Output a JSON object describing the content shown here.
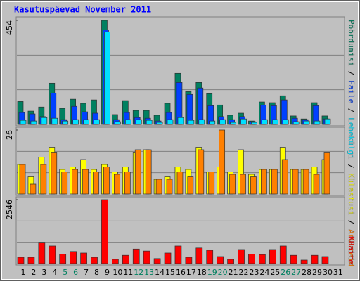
{
  "chart_data": {
    "type": "bar",
    "title": "Kasutuspäevad November 2011",
    "categories": [
      "1",
      "2",
      "3",
      "4",
      "5",
      "6",
      "7",
      "8",
      "9",
      "10",
      "11",
      "12",
      "13",
      "14",
      "15",
      "16",
      "17",
      "18",
      "19",
      "20",
      "21",
      "22",
      "23",
      "24",
      "25",
      "26",
      "27",
      "28",
      "29",
      "30",
      "31"
    ],
    "weekend_color": "#008060",
    "weekend_categories": [
      4,
      5,
      11,
      12,
      18,
      19,
      25,
      26
    ],
    "legend_separator": " / ",
    "panels": [
      {
        "ylim": [
          0,
          454
        ],
        "yticks": [
          454
        ],
        "series": [
          {
            "name": "Pöördumisi",
            "color": "#008060",
            "values": [
              100,
              58,
              76,
              180,
              70,
              110,
              92,
              107,
              454,
              43,
              104,
              61,
              61,
              40,
              92,
              223,
              143,
              183,
              134,
              85,
              40,
              49,
              15,
              98,
              95,
              125,
              37,
              24,
              95,
              37,
              0
            ]
          },
          {
            "name": "Faile",
            "color": "#0040ff",
            "values": [
              52,
              46,
              34,
              137,
              21,
              79,
              55,
              49,
              412,
              21,
              52,
              30,
              27,
              15,
              52,
              183,
              131,
              159,
              82,
              34,
              21,
              34,
              12,
              85,
              82,
              107,
              27,
              21,
              82,
              24,
              0
            ]
          },
          {
            "name": "Lehekülgi",
            "color": "#00e0ff",
            "values": [
              18,
              15,
              30,
              27,
              15,
              21,
              21,
              21,
              403,
              12,
              21,
              21,
              18,
              9,
              21,
              30,
              18,
              21,
              15,
              21,
              9,
              24,
              9,
              21,
              21,
              21,
              12,
              15,
              15,
              24,
              0
            ]
          }
        ]
      },
      {
        "ylim": [
          0,
          26
        ],
        "yticks": [
          26
        ],
        "series": [
          {
            "name": "Külastusi",
            "color": "#ffff00",
            "values": [
              12,
              7,
              15,
              19,
              10,
              11,
              14,
              10,
              12,
              9,
              11,
              17,
              18,
              6,
              7,
              11,
              10,
              19,
              9,
              11,
              9,
              18,
              8,
              10,
              10,
              19,
              10,
              10,
              11,
              14,
              0
            ]
          },
          {
            "name": "Arvuteid",
            "color": "#ff8000",
            "values": [
              12,
              4,
              12,
              17,
              9,
              10,
              10,
              9,
              11,
              8,
              9,
              18,
              18,
              6,
              6,
              9,
              7,
              18,
              9,
              26,
              8,
              8,
              7,
              10,
              10,
              14,
              10,
              10,
              8,
              17,
              0
            ]
          }
        ]
      },
      {
        "ylim": [
          0,
          2546
        ],
        "yticks": [
          2546
        ],
        "series": [
          {
            "name": "KBaite",
            "color": "#ff0000",
            "values": [
              250,
              250,
              850,
              700,
              380,
              480,
              420,
              250,
              2546,
              170,
              330,
              580,
              500,
              200,
              420,
              700,
              250,
              620,
              530,
              280,
              170,
              560,
              380,
              360,
              560,
              700,
              330,
              140,
              330,
              280,
              0
            ]
          }
        ]
      }
    ]
  }
}
